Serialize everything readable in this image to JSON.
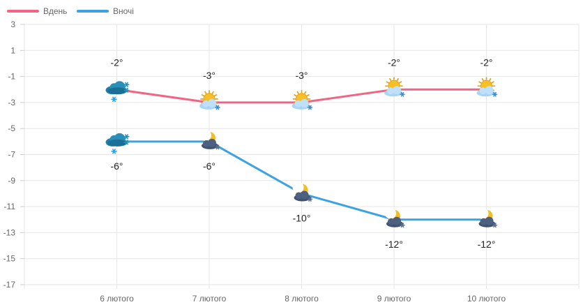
{
  "chart_data": {
    "type": "line",
    "categories": [
      "6 лютого",
      "7 лютого",
      "8 лютого",
      "9 лютого",
      "10 лютого"
    ],
    "series": [
      {
        "name": "Вдень",
        "color": "#f06584",
        "values": [
          -2,
          -3,
          -3,
          -2,
          -2
        ],
        "labels": [
          "-2°",
          "-3°",
          "-3°",
          "-2°",
          "-2°"
        ],
        "icons": [
          "snow-cloud-icon",
          "sun-cloud-snow-icon",
          "sun-cloud-snow-icon",
          "sun-cloud-snow-icon",
          "sun-cloud-snow-icon"
        ]
      },
      {
        "name": "Вночі",
        "color": "#3ba3e3",
        "values": [
          -6,
          -6,
          -10,
          -12,
          -12
        ],
        "labels": [
          "-6°",
          "-6°",
          "-10°",
          "-12°",
          "-12°"
        ],
        "icons": [
          "snow-cloud-icon",
          "moon-cloud-snow-icon",
          "moon-cloud-snow-icon",
          "moon-cloud-snow-icon",
          "moon-cloud-snow-icon"
        ]
      }
    ],
    "yticks": [
      "3",
      "1",
      "-1",
      "-3",
      "-5",
      "-7",
      "-9",
      "-11",
      "-13",
      "-15",
      "-17"
    ],
    "ylim": [
      -17,
      3
    ],
    "grid": true,
    "legend": "top-left"
  }
}
